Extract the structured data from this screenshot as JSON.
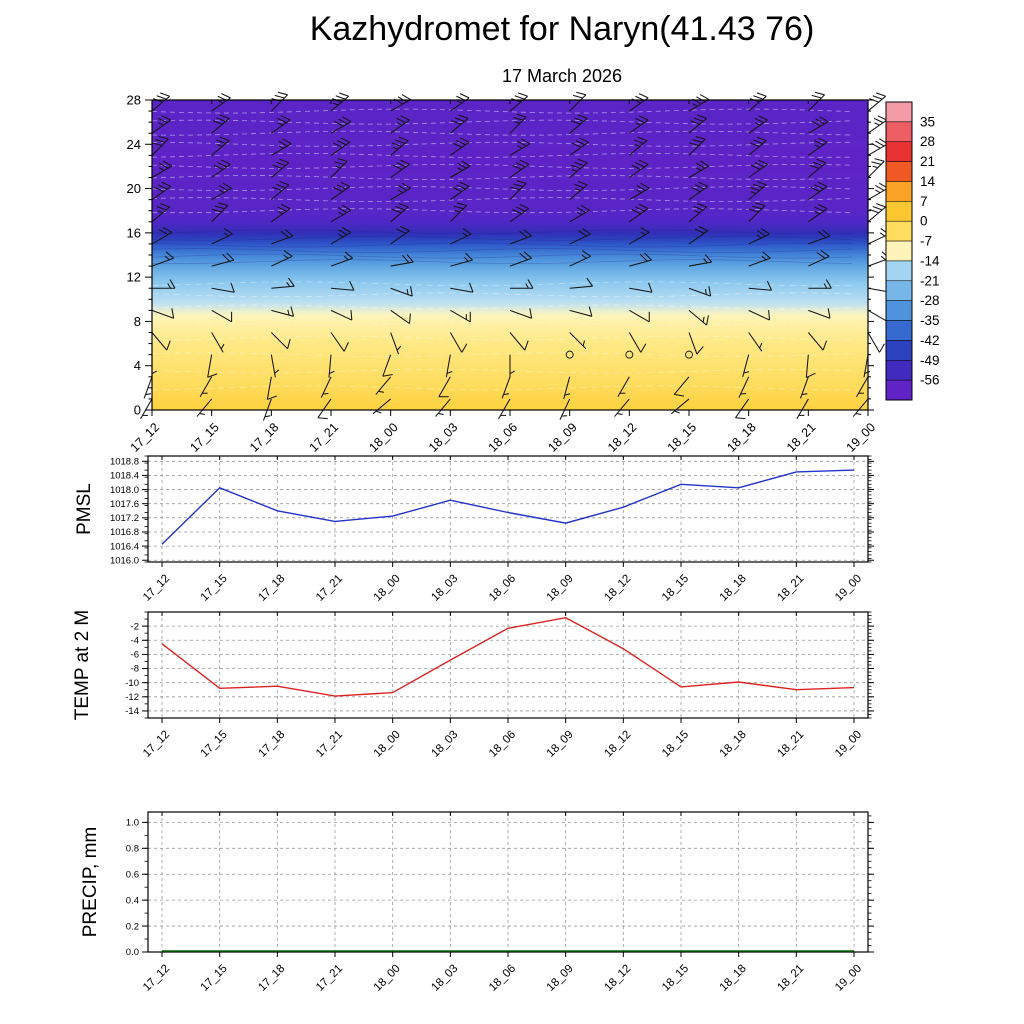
{
  "title": "Kazhydromet for Naryn(41.43 76)",
  "subtitle": "17 March 2026",
  "times": [
    "17_12",
    "17_15",
    "17_18",
    "17_21",
    "18_00",
    "18_03",
    "18_06",
    "18_09",
    "18_12",
    "18_15",
    "18_18",
    "18_21",
    "19_00"
  ],
  "chart_data": [
    {
      "name": "vertical-profile",
      "type": "heatmap",
      "ylim": [
        0,
        28
      ],
      "y_ticks": [
        0,
        4,
        8,
        12,
        16,
        20,
        24,
        28
      ],
      "temperature_profile": {
        "heights": [
          0,
          2,
          4,
          6,
          8,
          9,
          10,
          11,
          12,
          13,
          14,
          15,
          16,
          17,
          18,
          20,
          22,
          24,
          26,
          28
        ],
        "temps_c": [
          -0.5,
          -3,
          -5,
          -7,
          -9.5,
          -12,
          -15,
          -19,
          -23,
          -28,
          -34,
          -42,
          -50,
          -55,
          -57,
          -58,
          -59,
          -58.5,
          -58,
          -57.5
        ]
      },
      "wind_barbs": {
        "levels": [
          27,
          25,
          23,
          21,
          19,
          17,
          15,
          13,
          11,
          9,
          7,
          5,
          3,
          1
        ],
        "dir_deg": [
          [
            50,
            55,
            45,
            50,
            60,
            55,
            50,
            45,
            55,
            60,
            50,
            45,
            50
          ],
          [
            55,
            50,
            55,
            60,
            55,
            50,
            45,
            50,
            55,
            50,
            55,
            60,
            55
          ],
          [
            45,
            50,
            60,
            55,
            50,
            55,
            60,
            55,
            50,
            45,
            50,
            55,
            60
          ],
          [
            60,
            55,
            50,
            45,
            55,
            60,
            55,
            50,
            55,
            60,
            55,
            50,
            45
          ],
          [
            55,
            60,
            50,
            55,
            60,
            55,
            45,
            50,
            60,
            55,
            50,
            55,
            60
          ],
          [
            50,
            45,
            55,
            60,
            50,
            45,
            55,
            60,
            55,
            50,
            45,
            55,
            50
          ],
          [
            60,
            65,
            70,
            60,
            55,
            65,
            70,
            65,
            60,
            55,
            65,
            70,
            65
          ],
          [
            70,
            75,
            65,
            70,
            80,
            75,
            70,
            65,
            75,
            80,
            70,
            65,
            70
          ],
          [
            90,
            100,
            85,
            95,
            110,
            100,
            90,
            85,
            100,
            110,
            95,
            90,
            100
          ],
          [
            110,
            120,
            105,
            115,
            125,
            120,
            110,
            105,
            120,
            130,
            115,
            110,
            120
          ],
          [
            140,
            150,
            135,
            145,
            160,
            150,
            140,
            135,
            150,
            160,
            145,
            140,
            150
          ],
          [
            180,
            190,
            170,
            185,
            200,
            190,
            180,
            0,
            0,
            0,
            195,
            185,
            190
          ],
          [
            200,
            210,
            190,
            205,
            220,
            210,
            200,
            195,
            210,
            220,
            205,
            200,
            210
          ],
          [
            210,
            220,
            200,
            215,
            230,
            220,
            210,
            205,
            220,
            230,
            215,
            210,
            220
          ]
        ],
        "speed_kt": [
          [
            30,
            25,
            30,
            35,
            30,
            25,
            30,
            25,
            30,
            35,
            30,
            25,
            30
          ],
          [
            25,
            30,
            25,
            30,
            25,
            30,
            25,
            30,
            25,
            30,
            25,
            30,
            25
          ],
          [
            30,
            25,
            25,
            30,
            35,
            30,
            25,
            30,
            25,
            30,
            30,
            25,
            30
          ],
          [
            25,
            30,
            30,
            25,
            30,
            25,
            30,
            35,
            30,
            25,
            30,
            30,
            25
          ],
          [
            30,
            25,
            30,
            30,
            25,
            30,
            30,
            25,
            25,
            30,
            35,
            30,
            25
          ],
          [
            25,
            30,
            25,
            25,
            30,
            25,
            30,
            25,
            30,
            25,
            30,
            25,
            30
          ],
          [
            20,
            15,
            20,
            25,
            20,
            15,
            20,
            20,
            15,
            20,
            25,
            20,
            15
          ],
          [
            15,
            20,
            15,
            15,
            20,
            15,
            20,
            15,
            20,
            15,
            15,
            20,
            15
          ],
          [
            15,
            10,
            15,
            10,
            15,
            10,
            15,
            10,
            10,
            15,
            10,
            15,
            10
          ],
          [
            10,
            10,
            15,
            10,
            10,
            15,
            10,
            10,
            10,
            15,
            10,
            10,
            10
          ],
          [
            10,
            5,
            10,
            10,
            5,
            10,
            10,
            5,
            10,
            10,
            5,
            10,
            10
          ],
          [
            5,
            10,
            5,
            5,
            10,
            5,
            5,
            0,
            0,
            0,
            5,
            10,
            5
          ],
          [
            5,
            5,
            10,
            5,
            5,
            10,
            5,
            5,
            5,
            10,
            5,
            5,
            5
          ],
          [
            5,
            5,
            5,
            10,
            5,
            5,
            5,
            5,
            5,
            5,
            10,
            5,
            5
          ]
        ]
      },
      "colorbar": {
        "tick_labels": [
          "35",
          "28",
          "21",
          "14",
          "7",
          "0",
          "-7",
          "-14",
          "-21",
          "-28",
          "-35",
          "-42",
          "-49",
          "-56"
        ],
        "anchors": [
          [
            45,
            "#f8ccd6"
          ],
          [
            35,
            "#f0808e"
          ],
          [
            28,
            "#e93a3a"
          ],
          [
            21,
            "#e62a2a"
          ],
          [
            14,
            "#f8871e"
          ],
          [
            7,
            "#fcbe2b"
          ],
          [
            0,
            "#fdd039"
          ],
          [
            -7,
            "#ffe985"
          ],
          [
            -11,
            "#fef6c0"
          ],
          [
            -14,
            "#badff4"
          ],
          [
            -21,
            "#8cc8ee"
          ],
          [
            -28,
            "#5fa6e2"
          ],
          [
            -35,
            "#3f7fd6"
          ],
          [
            -42,
            "#2e55c8"
          ],
          [
            -49,
            "#2c2fb4"
          ],
          [
            -56,
            "#5526c8"
          ],
          [
            -63,
            "#6a1fc4"
          ]
        ]
      }
    },
    {
      "name": "pmsl",
      "type": "line",
      "ylabel": "PMSL",
      "color": "#2233cc",
      "ylim": [
        1015.95,
        1018.95
      ],
      "ytick_values": [
        1018.8,
        1018.4,
        1018.0,
        1017.6,
        1017.2,
        1016.8,
        1016.4,
        1016.0
      ],
      "ytick_labels": [
        "1018.8",
        "1018.4",
        "1018.0",
        "1017.6",
        "1017.2",
        "1016.8",
        "1016.4",
        "1016.0"
      ],
      "values": [
        1016.45,
        1018.05,
        1017.4,
        1017.1,
        1017.25,
        1017.7,
        1017.35,
        1017.05,
        1017.5,
        1018.15,
        1018.05,
        1018.5,
        1018.55
      ]
    },
    {
      "name": "temp2m",
      "type": "line",
      "ylabel": "TEMP at 2 M",
      "color": "#dd2222",
      "ylim": [
        -15,
        0
      ],
      "ytick_values": [
        -2,
        -4,
        -6,
        -8,
        -10,
        -12,
        -14
      ],
      "ytick_labels": [
        "-2",
        "-4",
        "-6",
        "-8",
        "-10",
        "-12",
        "-14"
      ],
      "values": [
        -4.5,
        -10.8,
        -10.5,
        -11.9,
        -11.4,
        -6.8,
        -2.3,
        -0.8,
        -5.2,
        -10.6,
        -9.9,
        -11.0,
        -10.7
      ]
    },
    {
      "name": "precip",
      "type": "line",
      "ylabel": "PRECIP, mm",
      "color": "#006600",
      "ylim": [
        0,
        1.08
      ],
      "ytick_values": [
        1.0,
        0.8,
        0.6,
        0.4,
        0.2,
        0.0
      ],
      "ytick_labels": [
        "1.0",
        "0.8",
        "0.6",
        "0.4",
        "0.2",
        "0.0"
      ],
      "values": [
        0,
        0,
        0,
        0,
        0,
        0,
        0,
        0,
        0,
        0,
        0,
        0,
        0
      ]
    }
  ]
}
